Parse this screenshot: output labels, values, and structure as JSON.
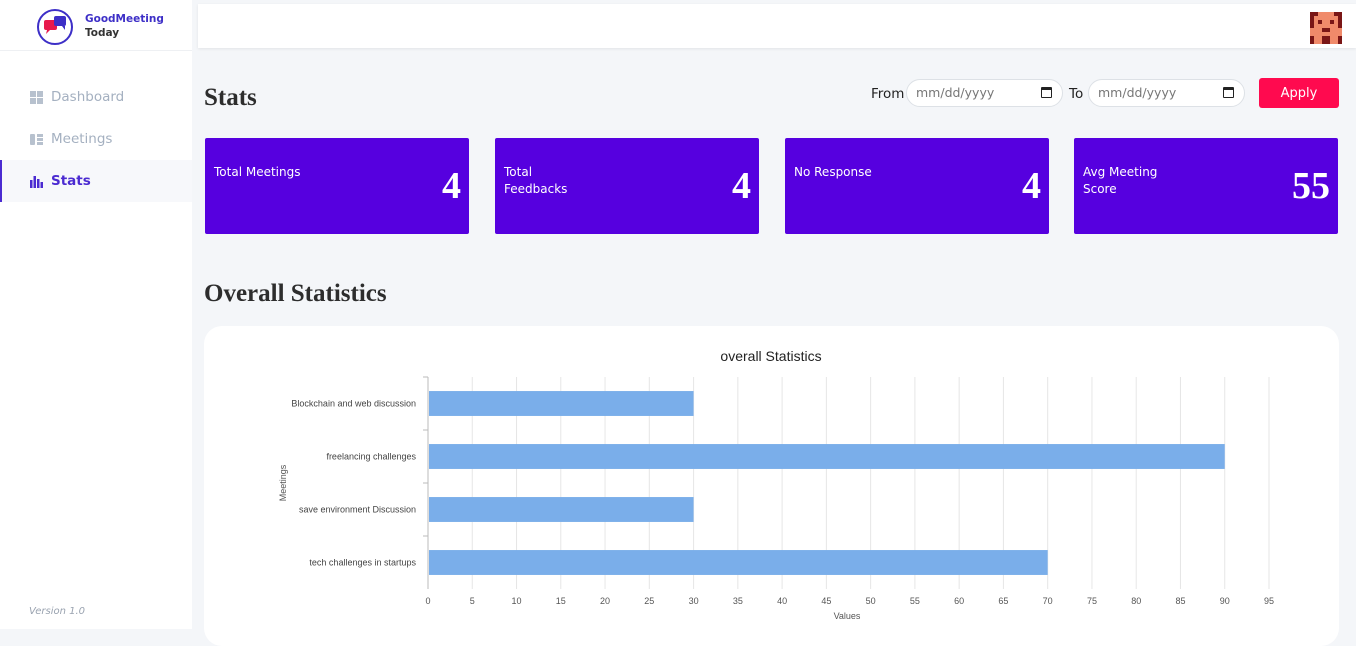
{
  "app": {
    "logo_line1": "GoodMeeting",
    "logo_line2": "Today",
    "version": "Version 1.0"
  },
  "sidebar": {
    "items": [
      {
        "label": "Dashboard",
        "icon": "dashboard-icon"
      },
      {
        "label": "Meetings",
        "icon": "meetings-icon"
      },
      {
        "label": "Stats",
        "icon": "bar-chart-icon"
      }
    ],
    "active": "Stats"
  },
  "main": {
    "title": "Stats",
    "filter": {
      "from_label": "From",
      "to_label": "To",
      "from_placeholder": "mm/dd/yyyy",
      "to_placeholder": "mm/dd/yyyy",
      "apply_label": "Apply"
    },
    "cards": [
      {
        "title": "Total Meetings",
        "value": "4"
      },
      {
        "title": "Total Feedbacks",
        "value": "4"
      },
      {
        "title": "No Response",
        "value": "4"
      },
      {
        "title": "Avg Meeting Score",
        "value": "55"
      }
    ],
    "section_title": "Overall Statistics"
  },
  "colors": {
    "accent": "#5600df",
    "apply": "#ff0a4f",
    "nav_active": "#4b2bd1",
    "bar": "#7aaeea"
  },
  "chart_data": {
    "type": "bar",
    "orientation": "horizontal",
    "title": "overall Statistics",
    "xlabel": "Values",
    "ylabel": "Meetings",
    "categories": [
      "Blockchain and web discussion",
      "freelancing challenges",
      "save environment Discussion",
      "tech challenges in startups"
    ],
    "values": [
      30,
      90,
      30,
      70
    ],
    "xlim": [
      0,
      95
    ],
    "xticks": [
      0,
      5,
      10,
      15,
      20,
      25,
      30,
      35,
      40,
      45,
      50,
      55,
      60,
      65,
      70,
      75,
      80,
      85,
      90,
      95
    ],
    "grid": true
  }
}
